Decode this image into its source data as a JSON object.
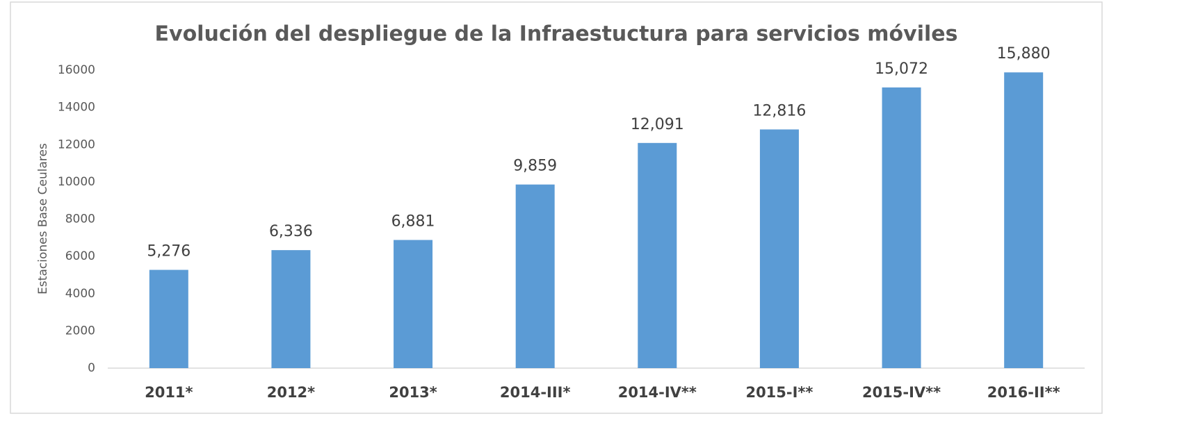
{
  "chart_data": {
    "type": "bar",
    "title": "Evolución del despliegue de la Infraestuctura para servicios móviles",
    "y_label": "Estaciones Base Ceulares",
    "categories": [
      "2011*",
      "2012*",
      "2013*",
      "2014-III*",
      "2014-IV**",
      "2015-I**",
      "2015-IV**",
      "2016-II**"
    ],
    "values": [
      5276,
      6336,
      6881,
      9859,
      12091,
      12816,
      15072,
      15880
    ],
    "value_labels": [
      "5,276",
      "6,336",
      "6,881",
      "9,859",
      "12,091",
      "12,816",
      "15,072",
      "15,880"
    ],
    "color": "#5b9bd5",
    "ylim": [
      0,
      16000
    ],
    "yticks": [
      0,
      2000,
      4000,
      6000,
      8000,
      10000,
      12000,
      14000,
      16000
    ],
    "grid": false
  }
}
